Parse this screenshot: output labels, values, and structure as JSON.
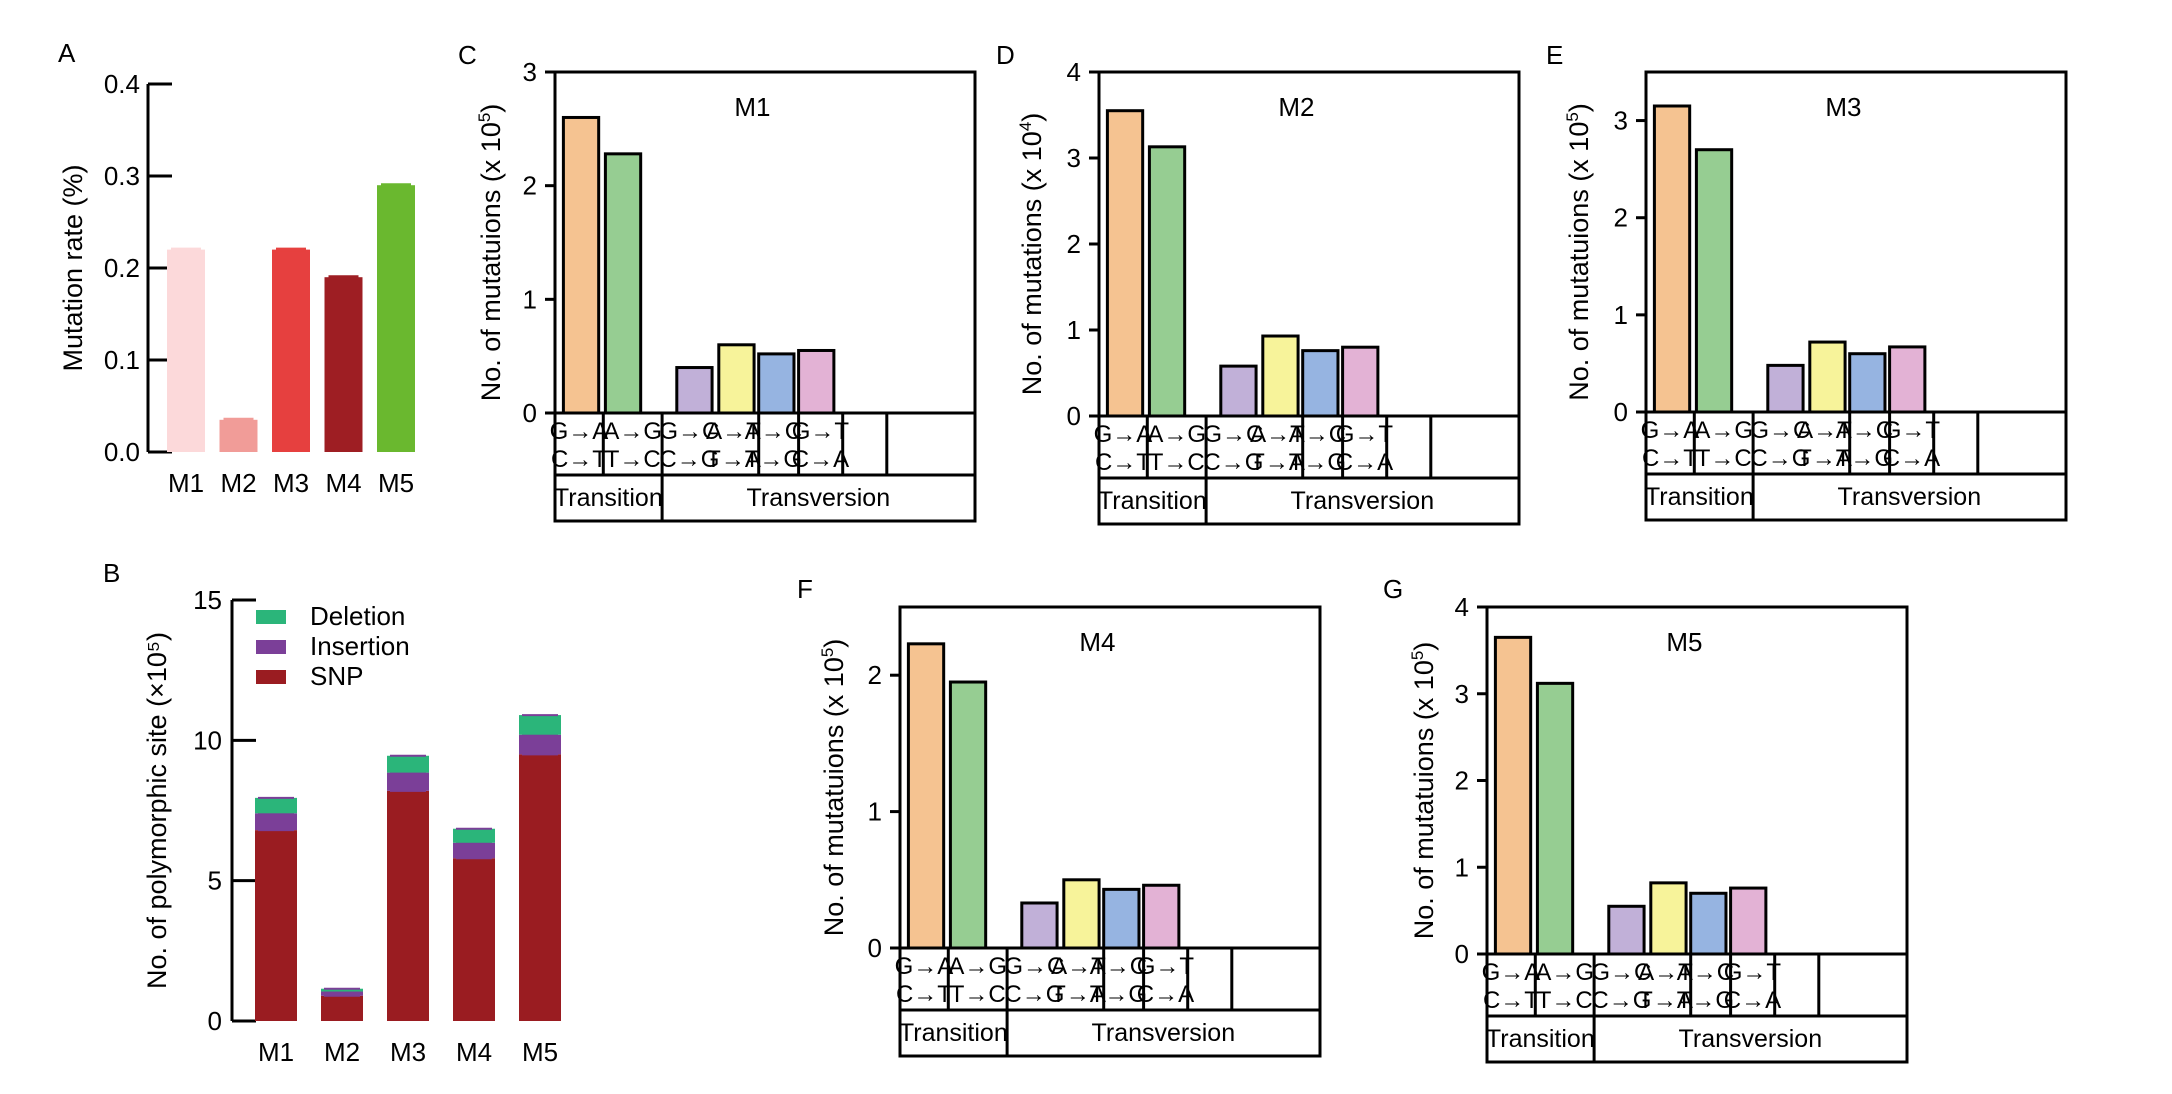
{
  "chart_data": [
    {
      "id": "A",
      "type": "bar",
      "panel_label": "A",
      "ylabel": "Mutation rate (%)",
      "ylim": [
        0,
        0.4
      ],
      "yticks": [
        "0.0",
        "0.1",
        "0.2",
        "0.3",
        "0.4"
      ],
      "categories": [
        "M1",
        "M2",
        "M3",
        "M4",
        "M5"
      ],
      "values": [
        0.22,
        0.035,
        0.22,
        0.19,
        0.29
      ],
      "colors": [
        "#fcd9da",
        "#f19c98",
        "#e6403f",
        "#9e1e23",
        "#6ab82f"
      ]
    },
    {
      "id": "B",
      "type": "bar",
      "stacked": true,
      "panel_label": "B",
      "ylabel": "No. of polymorphic site (×10⁵)",
      "ylim": [
        0,
        15
      ],
      "yticks": [
        "0",
        "5",
        "10",
        "15"
      ],
      "categories": [
        "M1",
        "M2",
        "M3",
        "M4",
        "M5"
      ],
      "series": [
        {
          "name": "SNP",
          "values": [
            6.8,
            0.9,
            8.2,
            5.8,
            9.5
          ],
          "color": "#9a1c21"
        },
        {
          "name": "Insertion",
          "values": [
            0.6,
            0.15,
            0.65,
            0.55,
            0.7
          ],
          "color": "#7b3f98"
        },
        {
          "name": "Deletion",
          "values": [
            0.55,
            0.1,
            0.6,
            0.5,
            0.7
          ],
          "color": "#2bb57a"
        }
      ],
      "legend": {
        "position": "top-left",
        "order": [
          "Deletion",
          "Insertion",
          "SNP"
        ]
      }
    },
    {
      "id": "C",
      "type": "bar",
      "panel_label": "C",
      "title": "M1",
      "ylabel": "No. of mutatuions (x 10",
      "ylabel_exp": "5",
      "ylim": [
        0,
        3
      ],
      "yticks": [
        "0",
        "1",
        "2",
        "3"
      ],
      "values": [
        2.6,
        2.28,
        0.4,
        0.6,
        0.52,
        0.55
      ]
    },
    {
      "id": "D",
      "type": "bar",
      "panel_label": "D",
      "title": "M2",
      "ylabel": "No. of mutations (x 10",
      "ylabel_exp": "4",
      "ylim": [
        0,
        4
      ],
      "yticks": [
        "0",
        "1",
        "2",
        "3",
        "4"
      ],
      "values": [
        3.55,
        3.13,
        0.58,
        0.93,
        0.76,
        0.8
      ]
    },
    {
      "id": "E",
      "type": "bar",
      "panel_label": "E",
      "title": "M3",
      "ylabel": "No. of mutatuions (x 10",
      "ylabel_exp": "5",
      "ylim": [
        0,
        3.5
      ],
      "yticks": [
        "0",
        "1",
        "2",
        "3"
      ],
      "values": [
        3.15,
        2.7,
        0.48,
        0.72,
        0.6,
        0.67
      ]
    },
    {
      "id": "F",
      "type": "bar",
      "panel_label": "F",
      "title": "M4",
      "ylabel": "No. of mutatuions (x 10",
      "ylabel_exp": "5",
      "ylim": [
        0,
        2.5
      ],
      "yticks": [
        "0",
        "1",
        "2"
      ],
      "values": [
        2.23,
        1.95,
        0.33,
        0.5,
        0.43,
        0.46
      ]
    },
    {
      "id": "G",
      "type": "bar",
      "panel_label": "G",
      "title": "M5",
      "ylabel": "No. of mutatuions (x 10",
      "ylabel_exp": "5",
      "ylim": [
        0,
        4
      ],
      "yticks": [
        "0",
        "1",
        "2",
        "3",
        "4"
      ],
      "values": [
        3.65,
        3.12,
        0.55,
        0.82,
        0.7,
        0.76
      ]
    }
  ],
  "mutation_types": [
    {
      "top": "G→A",
      "bottom": "C→T",
      "color": "#f5c391"
    },
    {
      "top": "A→G",
      "bottom": "T→C",
      "color": "#96cd92"
    },
    {
      "top": "G→C",
      "bottom": "C→G",
      "color": "#c1b0d8"
    },
    {
      "top": "A→T",
      "bottom": "T→A",
      "color": "#f7f39a"
    },
    {
      "top": "A→C",
      "bottom": "T→G",
      "color": "#96b4e1"
    },
    {
      "top": "G→T",
      "bottom": "C→A",
      "color": "#e3b2d5"
    }
  ],
  "mutation_groups": [
    "Transition",
    "Transversion"
  ]
}
